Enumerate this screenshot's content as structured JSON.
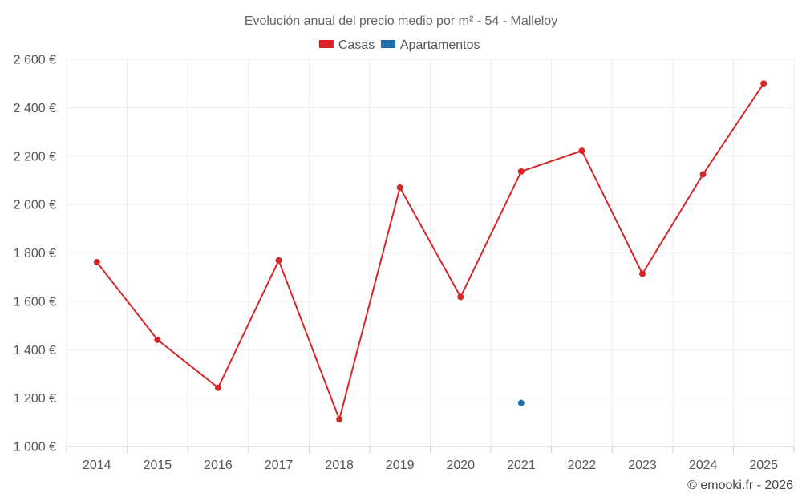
{
  "chart_data": {
    "type": "line",
    "title": "Evolución anual del precio medio por m² - 54 - Malleloy",
    "categories": [
      "2014",
      "2015",
      "2016",
      "2017",
      "2018",
      "2019",
      "2020",
      "2021",
      "2022",
      "2023",
      "2024",
      "2025"
    ],
    "series": [
      {
        "name": "Casas",
        "color": "#d62728",
        "values": [
          1762,
          1441,
          1243,
          1769,
          1112,
          2070,
          1618,
          2137,
          2222,
          1714,
          2125,
          2500
        ]
      },
      {
        "name": "Apartamentos",
        "color": "#1f6fa8",
        "values": [
          null,
          null,
          null,
          null,
          null,
          null,
          null,
          1180,
          null,
          null,
          null,
          null
        ]
      }
    ],
    "ylim": [
      1000,
      2600
    ],
    "y_ticks": [
      1000,
      1200,
      1400,
      1600,
      1800,
      2000,
      2200,
      2400,
      2600
    ],
    "y_tick_labels": [
      "1 000 €",
      "1 200 €",
      "1 400 €",
      "1 600 €",
      "1 800 €",
      "2 000 €",
      "2 200 €",
      "2 400 €",
      "2 600 €"
    ],
    "xlabel": "",
    "ylabel": "",
    "grid": true,
    "legend_position": "top-center"
  },
  "credit": "© emooki.fr - 2026"
}
